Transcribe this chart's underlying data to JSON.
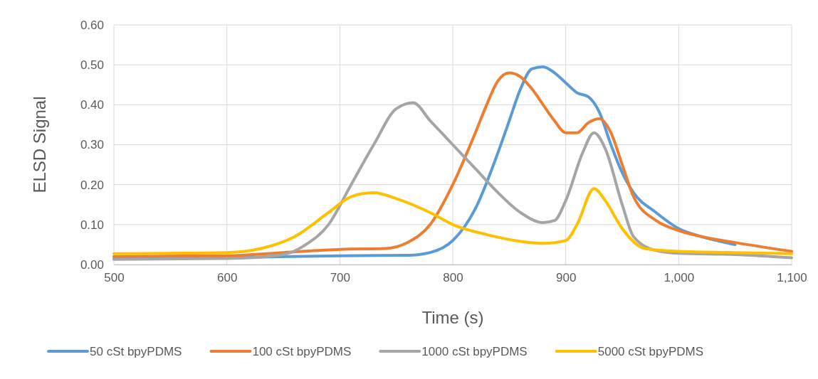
{
  "chart_data": {
    "type": "line",
    "xlabel": "Time (s)",
    "ylabel": "ELSD Signal",
    "xlim": [
      500,
      1100
    ],
    "xticks": [
      500,
      600,
      700,
      800,
      900,
      {
        "value": 1000,
        "label": "1,000"
      },
      {
        "value": 1100,
        "label": "1,100"
      }
    ],
    "ylim": [
      0,
      0.6
    ],
    "yticks": [
      {
        "value": 0,
        "label": "0.00"
      },
      {
        "value": 0.1,
        "label": "0.10"
      },
      {
        "value": 0.2,
        "label": "0.20"
      },
      {
        "value": 0.3,
        "label": "0.30"
      },
      {
        "value": 0.4,
        "label": "0.40"
      },
      {
        "value": 0.5,
        "label": "0.50"
      },
      {
        "value": 0.6,
        "label": "0.60"
      }
    ],
    "grid": true,
    "legend": "bottom",
    "marker": "none",
    "line_style": "solid",
    "series": [
      {
        "name": "50 cSt bpyPDMS",
        "color": "#5b9bd5",
        "x": [
          500,
          600,
          700,
          760,
          780,
          800,
          820,
          840,
          850,
          860,
          870,
          880,
          890,
          900,
          910,
          920,
          930,
          940,
          950,
          960,
          980,
          1000,
          1020,
          1050
        ],
        "values": [
          0.015,
          0.017,
          0.022,
          0.023,
          0.03,
          0.06,
          0.14,
          0.28,
          0.36,
          0.44,
          0.49,
          0.495,
          0.48,
          0.455,
          0.43,
          0.42,
          0.38,
          0.3,
          0.23,
          0.18,
          0.13,
          0.09,
          0.07,
          0.05
        ]
      },
      {
        "name": "100 cSt bpyPDMS",
        "color": "#ed7d31",
        "x": [
          500,
          600,
          650,
          700,
          740,
          760,
          780,
          800,
          820,
          830,
          840,
          850,
          860,
          870,
          880,
          890,
          900,
          910,
          920,
          930,
          940,
          950,
          960,
          980,
          1000,
          1020,
          1050,
          1100
        ],
        "values": [
          0.02,
          0.022,
          0.03,
          0.038,
          0.04,
          0.055,
          0.1,
          0.2,
          0.33,
          0.4,
          0.46,
          0.48,
          0.47,
          0.44,
          0.4,
          0.36,
          0.33,
          0.33,
          0.355,
          0.365,
          0.33,
          0.25,
          0.17,
          0.11,
          0.085,
          0.07,
          0.055,
          0.033
        ]
      },
      {
        "name": "1000 cSt bpyPDMS",
        "color": "#a5a5a5",
        "x": [
          500,
          600,
          650,
          670,
          690,
          710,
          730,
          750,
          765,
          780,
          800,
          820,
          840,
          860,
          880,
          890,
          900,
          915,
          925,
          935,
          950,
          960,
          980,
          1000,
          1050,
          1100
        ],
        "values": [
          0.013,
          0.015,
          0.025,
          0.05,
          0.1,
          0.2,
          0.3,
          0.39,
          0.405,
          0.36,
          0.3,
          0.24,
          0.18,
          0.13,
          0.105,
          0.11,
          0.16,
          0.28,
          0.33,
          0.29,
          0.15,
          0.07,
          0.035,
          0.028,
          0.025,
          0.017
        ]
      },
      {
        "name": "5000 cSt bpyPDMS",
        "color": "#ffc000",
        "x": [
          500,
          600,
          630,
          660,
          690,
          710,
          730,
          750,
          780,
          800,
          830,
          860,
          880,
          900,
          910,
          925,
          935,
          950,
          970,
          1000,
          1050,
          1100
        ],
        "values": [
          0.027,
          0.03,
          0.04,
          0.07,
          0.13,
          0.17,
          0.18,
          0.165,
          0.13,
          0.1,
          0.075,
          0.058,
          0.053,
          0.06,
          0.1,
          0.19,
          0.16,
          0.09,
          0.04,
          0.033,
          0.03,
          0.027
        ]
      }
    ]
  }
}
